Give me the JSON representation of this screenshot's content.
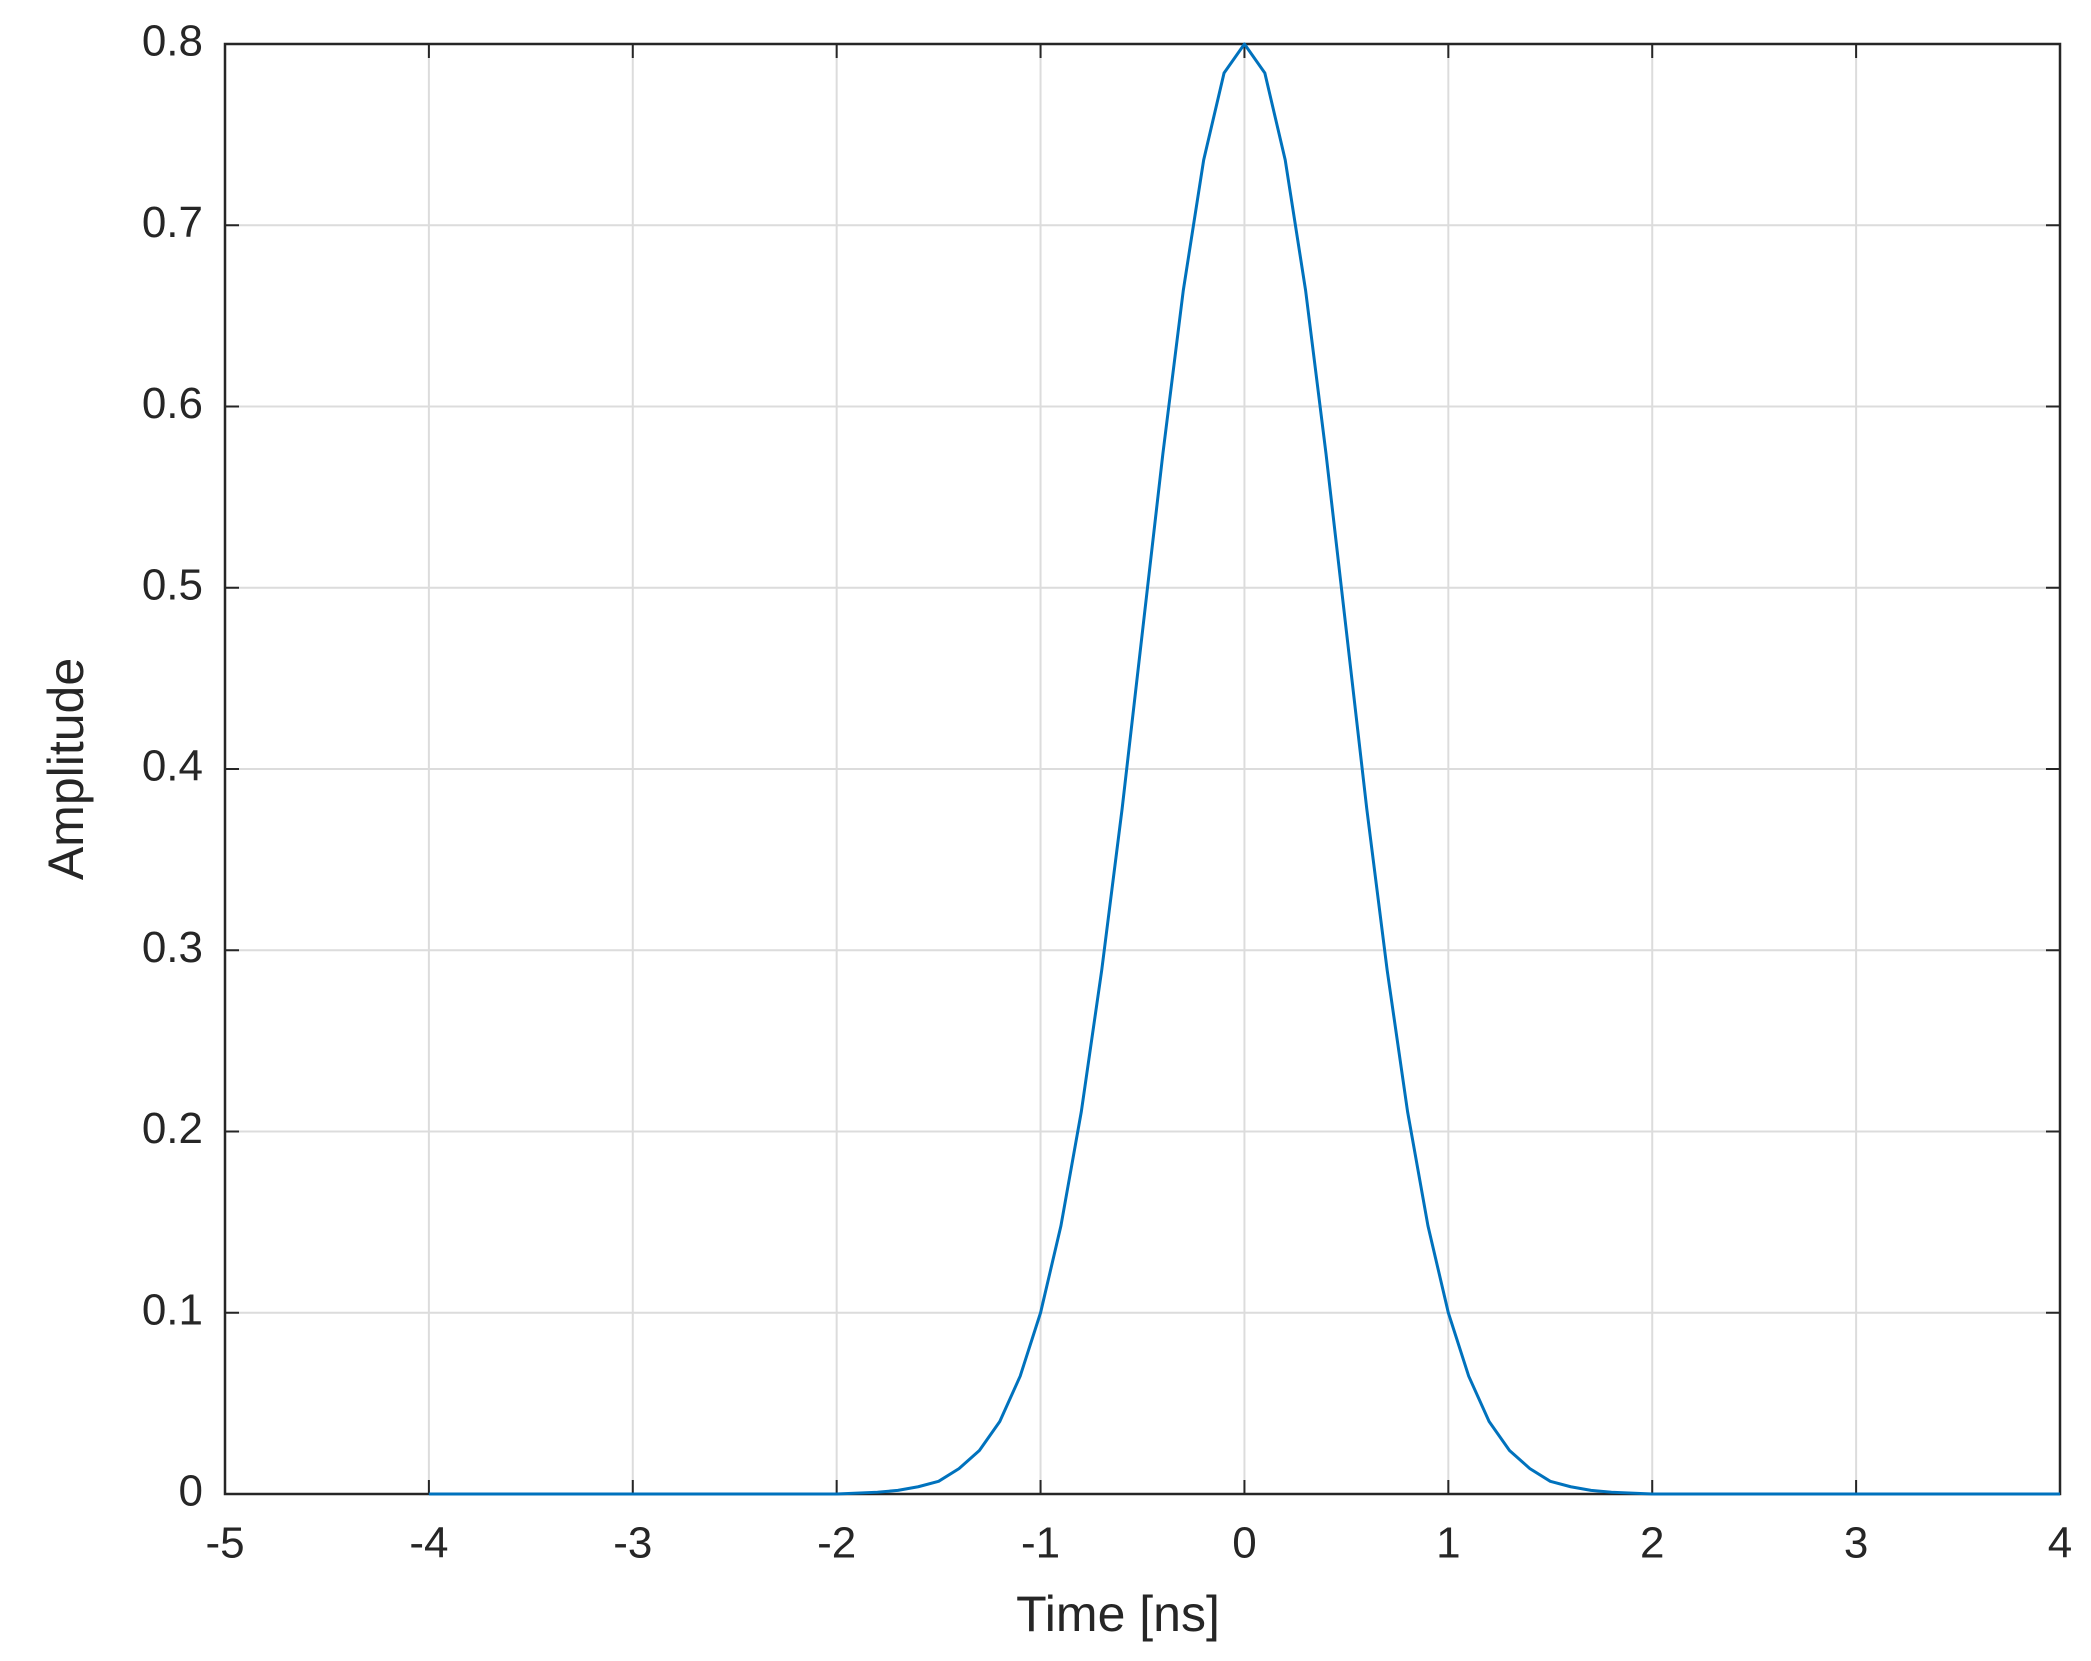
{
  "chart_data": {
    "type": "line",
    "xlabel": "Time [ns]",
    "ylabel": "Amplitude",
    "x": [
      -4,
      -3,
      -2.5,
      -2,
      -1.8,
      -1.7,
      -1.6,
      -1.5,
      -1.4,
      -1.3,
      -1.2,
      -1.1,
      -1,
      -0.9,
      -0.8,
      -0.7,
      -0.6,
      -0.5,
      -0.4,
      -0.3,
      -0.2,
      -0.1,
      0,
      0.1,
      0.2,
      0.3,
      0.4,
      0.5,
      0.6,
      0.7,
      0.8,
      0.9,
      1,
      1.1,
      1.2,
      1.3,
      1.4,
      1.5,
      1.6,
      1.7,
      1.8,
      2,
      2.5,
      3,
      4
    ],
    "values": [
      0,
      0,
      0,
      0,
      0.001,
      0.002,
      0.004,
      0.007,
      0.014,
      0.024,
      0.04,
      0.065,
      0.1,
      0.148,
      0.211,
      0.289,
      0.378,
      0.476,
      0.574,
      0.664,
      0.736,
      0.784,
      0.8,
      0.784,
      0.736,
      0.664,
      0.574,
      0.476,
      0.378,
      0.289,
      0.211,
      0.148,
      0.1,
      0.065,
      0.04,
      0.024,
      0.014,
      0.007,
      0.004,
      0.002,
      0.001,
      0,
      0,
      0,
      0
    ],
    "color": "#0072bd",
    "xlim": [
      -5,
      4
    ],
    "xticks": [
      -5,
      -4,
      -3,
      -2,
      -1,
      0,
      1,
      2,
      3,
      4
    ],
    "ylim": [
      0,
      0.8
    ],
    "yticks": [
      0,
      0.1,
      0.2,
      0.3,
      0.4,
      0.5,
      0.6,
      0.7,
      0.8
    ],
    "grid": true
  }
}
